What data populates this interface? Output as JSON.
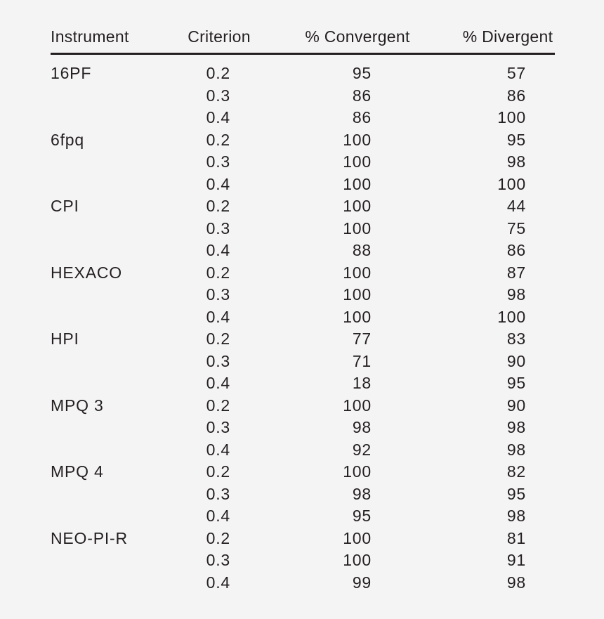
{
  "colors": {
    "background": "#f5f4f5",
    "text": "#231f20",
    "rule": "#231f20"
  },
  "table": {
    "columns": [
      {
        "key": "instrument",
        "label": "Instrument"
      },
      {
        "key": "criterion",
        "label": "Criterion"
      },
      {
        "key": "convergent",
        "label": "% Convergent"
      },
      {
        "key": "divergent",
        "label": "% Divergent"
      }
    ],
    "rows": [
      {
        "instrument": "16PF",
        "criterion": "0.2",
        "convergent": "95",
        "divergent": "57"
      },
      {
        "instrument": "",
        "criterion": "0.3",
        "convergent": "86",
        "divergent": "86"
      },
      {
        "instrument": "",
        "criterion": "0.4",
        "convergent": "86",
        "divergent": "100"
      },
      {
        "instrument": "6fpq",
        "criterion": "0.2",
        "convergent": "100",
        "divergent": "95"
      },
      {
        "instrument": "",
        "criterion": "0.3",
        "convergent": "100",
        "divergent": "98"
      },
      {
        "instrument": "",
        "criterion": "0.4",
        "convergent": "100",
        "divergent": "100"
      },
      {
        "instrument": "CPI",
        "criterion": "0.2",
        "convergent": "100",
        "divergent": "44"
      },
      {
        "instrument": "",
        "criterion": "0.3",
        "convergent": "100",
        "divergent": "75"
      },
      {
        "instrument": "",
        "criterion": "0.4",
        "convergent": "88",
        "divergent": "86"
      },
      {
        "instrument": "HEXACO",
        "criterion": "0.2",
        "convergent": "100",
        "divergent": "87"
      },
      {
        "instrument": "",
        "criterion": "0.3",
        "convergent": "100",
        "divergent": "98"
      },
      {
        "instrument": "",
        "criterion": "0.4",
        "convergent": "100",
        "divergent": "100"
      },
      {
        "instrument": "HPI",
        "criterion": "0.2",
        "convergent": "77",
        "divergent": "83"
      },
      {
        "instrument": "",
        "criterion": "0.3",
        "convergent": "71",
        "divergent": "90"
      },
      {
        "instrument": "",
        "criterion": "0.4",
        "convergent": "18",
        "divergent": "95"
      },
      {
        "instrument": "MPQ 3",
        "criterion": "0.2",
        "convergent": "100",
        "divergent": "90"
      },
      {
        "instrument": "",
        "criterion": "0.3",
        "convergent": "98",
        "divergent": "98"
      },
      {
        "instrument": "",
        "criterion": "0.4",
        "convergent": "92",
        "divergent": "98"
      },
      {
        "instrument": "MPQ 4",
        "criterion": "0.2",
        "convergent": "100",
        "divergent": "82"
      },
      {
        "instrument": "",
        "criterion": "0.3",
        "convergent": "98",
        "divergent": "95"
      },
      {
        "instrument": "",
        "criterion": "0.4",
        "convergent": "95",
        "divergent": "98"
      },
      {
        "instrument": "NEO-PI-R",
        "criterion": "0.2",
        "convergent": "100",
        "divergent": "81"
      },
      {
        "instrument": "",
        "criterion": "0.3",
        "convergent": "100",
        "divergent": "91"
      },
      {
        "instrument": "",
        "criterion": "0.4",
        "convergent": "99",
        "divergent": "98"
      }
    ]
  }
}
